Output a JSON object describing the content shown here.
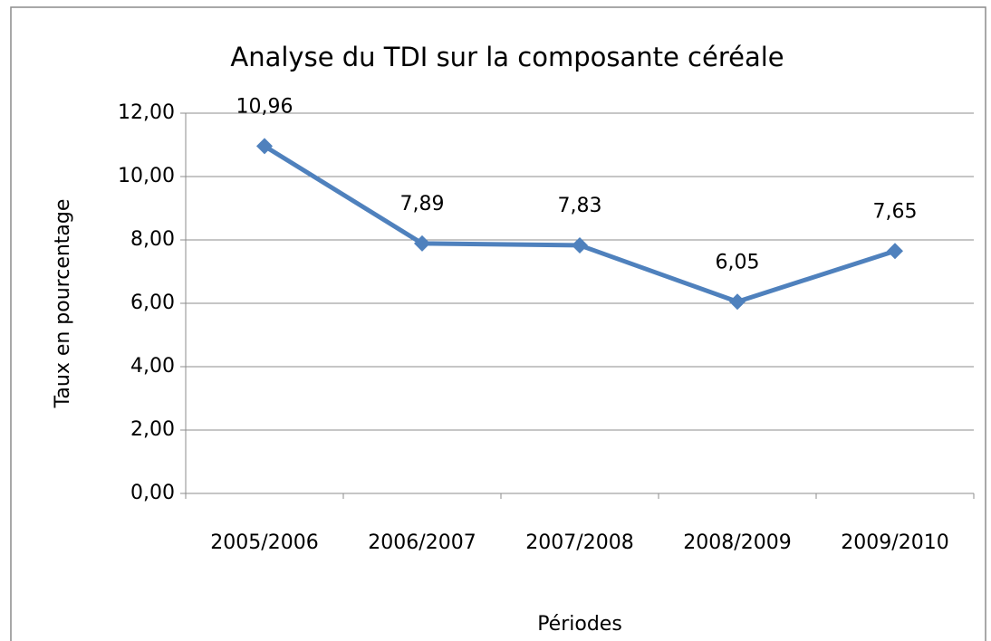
{
  "chart_data": {
    "type": "line",
    "title": "Analyse du TDI sur la composante céréale",
    "x_label": "Périodes",
    "y_label": "Taux en pourcentage",
    "categories": [
      "2005/2006",
      "2006/2007",
      "2007/2008",
      "2008/2009",
      "2009/2010"
    ],
    "series": [
      {
        "name": "TDI",
        "color": "#4f81bd",
        "values": [
          10.96,
          7.89,
          7.83,
          6.05,
          7.65
        ],
        "value_labels": [
          "10,96",
          "7,89",
          "7,83",
          "6,05",
          "7,65"
        ]
      }
    ],
    "ylim": [
      0,
      12
    ],
    "yticks": [
      {
        "value": 0,
        "label": "0,00"
      },
      {
        "value": 2,
        "label": "2,00"
      },
      {
        "value": 4,
        "label": "4,00"
      },
      {
        "value": 6,
        "label": "6,00"
      },
      {
        "value": 8,
        "label": "8,00"
      },
      {
        "value": 10,
        "label": "10,00"
      },
      {
        "value": 12,
        "label": "12,00"
      }
    ],
    "grid": true,
    "legend": false
  }
}
